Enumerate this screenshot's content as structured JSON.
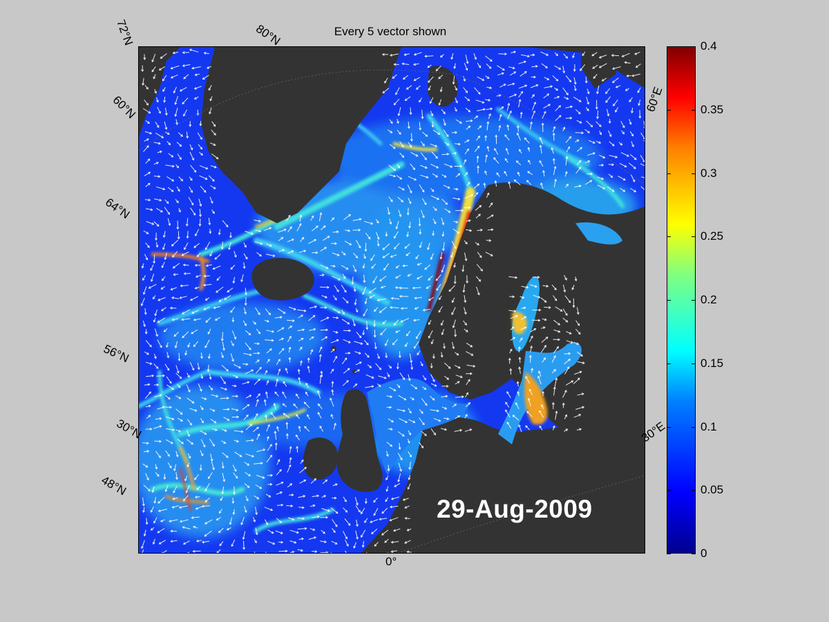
{
  "title": "Every 5 vector shown",
  "date": "29-Aug-2009",
  "lat_labels": [
    "72°N",
    "60°N",
    "64°N",
    "56°N",
    "30°N",
    "48°N"
  ],
  "lon_labels": [
    "80°N",
    "60°E",
    "30°E",
    "0°"
  ],
  "colorbar": {
    "min": 0,
    "max": 0.4,
    "ticks": [
      "0.4",
      "0.35",
      "0.3",
      "0.25",
      "0.2",
      "0.15",
      "0.1",
      "0.05",
      "0"
    ],
    "colormap": "jet"
  },
  "colors": {
    "land": "#333333",
    "background": "#c8c8c8",
    "ocean_low": "#0000ff",
    "ocean_high": "#800000",
    "vector": "#ffffff"
  }
}
